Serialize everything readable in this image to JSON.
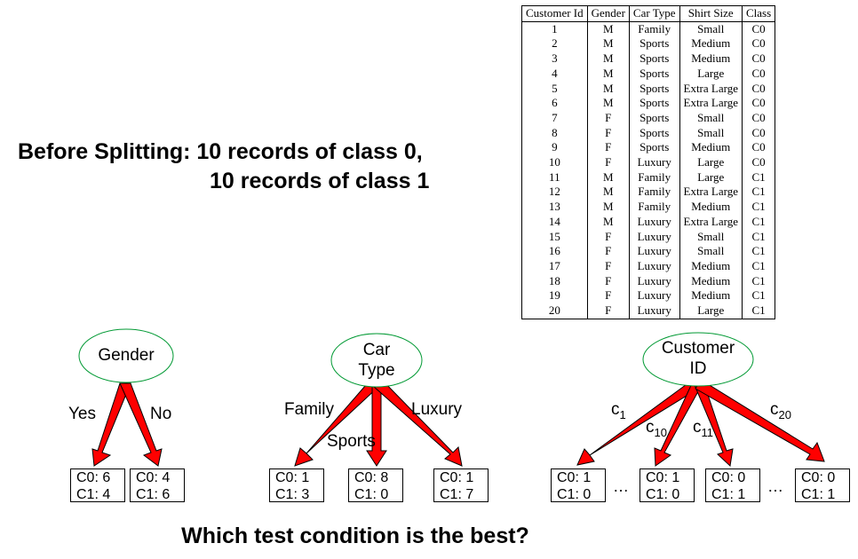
{
  "before": {
    "line1": "Before Splitting: 10 records of class 0,",
    "line2": "10 records of class 1"
  },
  "question": "Which test condition is the best?",
  "table": {
    "headers": [
      "Customer Id",
      "Gender",
      "Car Type",
      "Shirt Size",
      "Class"
    ],
    "rows": [
      [
        "1",
        "M",
        "Family",
        "Small",
        "C0"
      ],
      [
        "2",
        "M",
        "Sports",
        "Medium",
        "C0"
      ],
      [
        "3",
        "M",
        "Sports",
        "Medium",
        "C0"
      ],
      [
        "4",
        "M",
        "Sports",
        "Large",
        "C0"
      ],
      [
        "5",
        "M",
        "Sports",
        "Extra Large",
        "C0"
      ],
      [
        "6",
        "M",
        "Sports",
        "Extra Large",
        "C0"
      ],
      [
        "7",
        "F",
        "Sports",
        "Small",
        "C0"
      ],
      [
        "8",
        "F",
        "Sports",
        "Small",
        "C0"
      ],
      [
        "9",
        "F",
        "Sports",
        "Medium",
        "C0"
      ],
      [
        "10",
        "F",
        "Luxury",
        "Large",
        "C0"
      ],
      [
        "11",
        "M",
        "Family",
        "Large",
        "C1"
      ],
      [
        "12",
        "M",
        "Family",
        "Extra Large",
        "C1"
      ],
      [
        "13",
        "M",
        "Family",
        "Medium",
        "C1"
      ],
      [
        "14",
        "M",
        "Luxury",
        "Extra Large",
        "C1"
      ],
      [
        "15",
        "F",
        "Luxury",
        "Small",
        "C1"
      ],
      [
        "16",
        "F",
        "Luxury",
        "Small",
        "C1"
      ],
      [
        "17",
        "F",
        "Luxury",
        "Medium",
        "C1"
      ],
      [
        "18",
        "F",
        "Luxury",
        "Medium",
        "C1"
      ],
      [
        "19",
        "F",
        "Luxury",
        "Medium",
        "C1"
      ],
      [
        "20",
        "F",
        "Luxury",
        "Large",
        "C1"
      ]
    ]
  },
  "trees": {
    "gender": {
      "node": "Gender",
      "edges": [
        "Yes",
        "No"
      ],
      "leaves": [
        {
          "c0": "C0: 6",
          "c1": "C1: 4"
        },
        {
          "c0": "C0: 4",
          "c1": "C1: 6"
        }
      ]
    },
    "car": {
      "node_line1": "Car",
      "node_line2": "Type",
      "edges": [
        "Family",
        "Sports",
        "Luxury"
      ],
      "leaves": [
        {
          "c0": "C0: 1",
          "c1": "C1: 3"
        },
        {
          "c0": "C0: 8",
          "c1": "C1: 0"
        },
        {
          "c0": "C0: 1",
          "c1": "C1: 7"
        }
      ]
    },
    "customer": {
      "node_line1": "Customer",
      "node_line2": "ID",
      "edges": [
        {
          "base": "c",
          "sub": "1"
        },
        {
          "base": "c",
          "sub": "10"
        },
        {
          "base": "c",
          "sub": "11"
        },
        {
          "base": "c",
          "sub": "20"
        }
      ],
      "leaves": [
        {
          "c0": "C0: 1",
          "c1": "C1: 0"
        },
        {
          "c0": "C0: 1",
          "c1": "C1: 0"
        },
        {
          "c0": "C0: 0",
          "c1": "C1: 1"
        },
        {
          "c0": "C0: 0",
          "c1": "C1: 1"
        }
      ],
      "ellipsis": "…"
    }
  },
  "colors": {
    "arrow": "#ff0000",
    "arrow_outline": "#000000"
  }
}
